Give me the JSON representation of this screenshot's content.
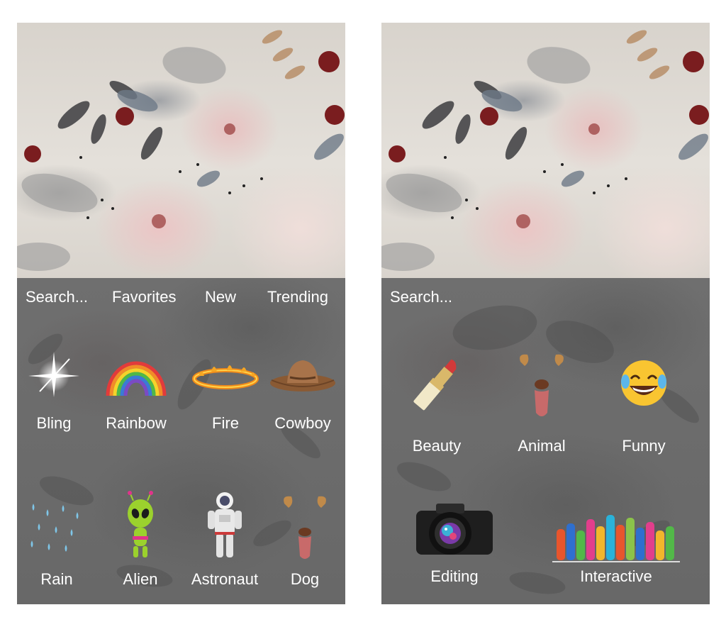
{
  "left_screen": {
    "search_label": "Search...",
    "tabs": [
      "Favorites",
      "New",
      "Trending"
    ],
    "row1": [
      {
        "label": "Bling",
        "icon": "sparkle-icon"
      },
      {
        "label": "Rainbow",
        "icon": "rainbow-icon"
      },
      {
        "label": "Fire",
        "icon": "fire-ring-icon"
      },
      {
        "label": "Cowboy",
        "icon": "cowboy-hat-icon"
      }
    ],
    "row2": [
      {
        "label": "Rain",
        "icon": "rain-drops-icon"
      },
      {
        "label": "Alien",
        "icon": "alien-icon"
      },
      {
        "label": "Astronaut",
        "icon": "astronaut-icon"
      },
      {
        "label": "Dog",
        "icon": "dog-ears-icon"
      }
    ]
  },
  "right_screen": {
    "search_label": "Search...",
    "row1": [
      {
        "label": "Beauty",
        "icon": "lipstick-icon"
      },
      {
        "label": "Animal",
        "icon": "dog-ears-icon"
      },
      {
        "label": "Funny",
        "icon": "laughing-emoji-icon"
      }
    ],
    "row2": [
      {
        "label": "Editing",
        "icon": "camera-icon"
      },
      {
        "label": "Interactive",
        "icon": "raised-hands-icon"
      }
    ]
  },
  "colors": {
    "panel": "#6b6b6b",
    "label": "#ffffff"
  }
}
